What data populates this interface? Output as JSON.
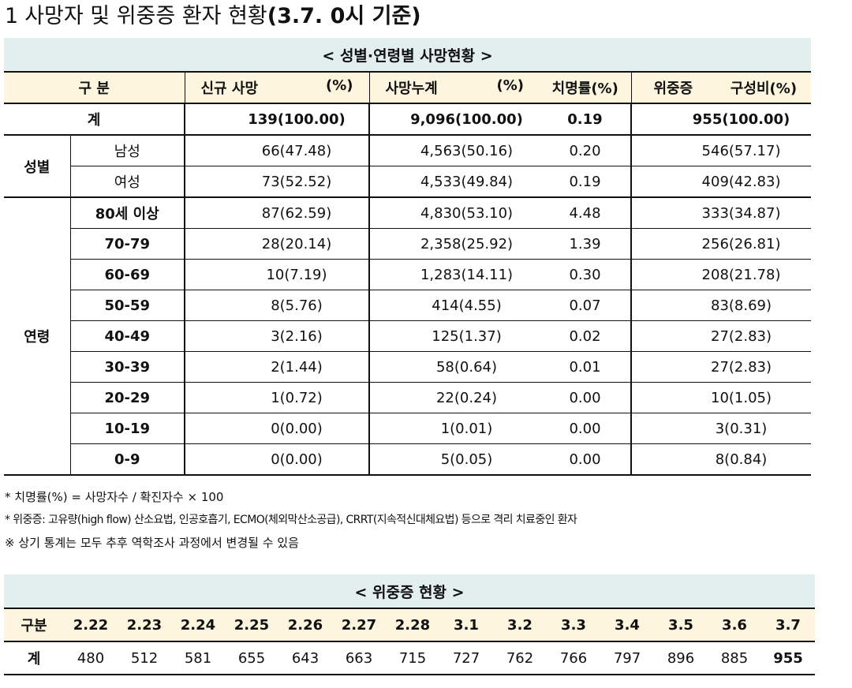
{
  "page_title": {
    "number": "1",
    "main": "사망자 및 위중증 환자 현황",
    "date": "(3.7. 0시 기준)"
  },
  "table1": {
    "caption": "< 성별·연령별 사망현황 >",
    "headers": {
      "category": "구 분",
      "new_deaths": "신규 사망",
      "new_deaths_pct": "(%)",
      "cumulative": "사망누계",
      "cumulative_pct": "(%)",
      "fatality": "치명률(%)",
      "severe": "위중증",
      "severe_ratio": "구성비(%)"
    },
    "total": {
      "label": "계",
      "new": "139(100.00)",
      "cum": "9,096(100.00)",
      "fatality": "0.19",
      "severe": "955(100.00)"
    },
    "sex_group": "성별",
    "sex_rows": [
      {
        "label": "남성",
        "new": "66(47.48)",
        "cum": "4,563(50.16)",
        "fatality": "0.20",
        "severe": "546(57.17)"
      },
      {
        "label": "여성",
        "new": "73(52.52)",
        "cum": "4,533(49.84)",
        "fatality": "0.19",
        "severe": "409(42.83)"
      }
    ],
    "age_group": "연령",
    "age_rows": [
      {
        "label": "80세 이상",
        "new": "87(62.59)",
        "cum": "4,830(53.10)",
        "fatality": "4.48",
        "severe": "333(34.87)"
      },
      {
        "label": "70-79",
        "new": "28(20.14)",
        "cum": "2,358(25.92)",
        "fatality": "1.39",
        "severe": "256(26.81)"
      },
      {
        "label": "60-69",
        "new": "10(7.19)",
        "cum": "1,283(14.11)",
        "fatality": "0.30",
        "severe": "208(21.78)"
      },
      {
        "label": "50-59",
        "new": "8(5.76)",
        "cum": "414(4.55)",
        "fatality": "0.07",
        "severe": "83(8.69)"
      },
      {
        "label": "40-49",
        "new": "3(2.16)",
        "cum": "125(1.37)",
        "fatality": "0.02",
        "severe": "27(2.83)"
      },
      {
        "label": "30-39",
        "new": "2(1.44)",
        "cum": "58(0.64)",
        "fatality": "0.01",
        "severe": "27(2.83)"
      },
      {
        "label": "20-29",
        "new": "1(0.72)",
        "cum": "22(0.24)",
        "fatality": "0.00",
        "severe": "10(1.05)"
      },
      {
        "label": "10-19",
        "new": "0(0.00)",
        "cum": "1(0.01)",
        "fatality": "0.00",
        "severe": "3(0.31)"
      },
      {
        "label": "0-9",
        "new": "0(0.00)",
        "cum": "5(0.05)",
        "fatality": "0.00",
        "severe": "8(0.84)"
      }
    ]
  },
  "notes": [
    "* 치명률(%) = 사망자수 / 확진자수 × 100",
    "* 위중증: 고유량(high flow) 산소요법, 인공호흡기, ECMO(체외막산소공급), CRRT(지속적신대체요법) 등으로 격리 치료중인 환자",
    "※ 상기 통계는 모두 추후 역학조사 과정에서 변경될 수 있음"
  ],
  "table2": {
    "caption": "< 위중증 현황 >",
    "row_header": "구분",
    "total_label": "계",
    "dates": [
      "2.22",
      "2.23",
      "2.24",
      "2.25",
      "2.26",
      "2.27",
      "2.28",
      "3.1",
      "3.2",
      "3.3",
      "3.4",
      "3.5",
      "3.6",
      "3.7"
    ],
    "values": [
      "480",
      "512",
      "581",
      "655",
      "643",
      "663",
      "715",
      "727",
      "762",
      "766",
      "797",
      "896",
      "885",
      "955"
    ]
  }
}
